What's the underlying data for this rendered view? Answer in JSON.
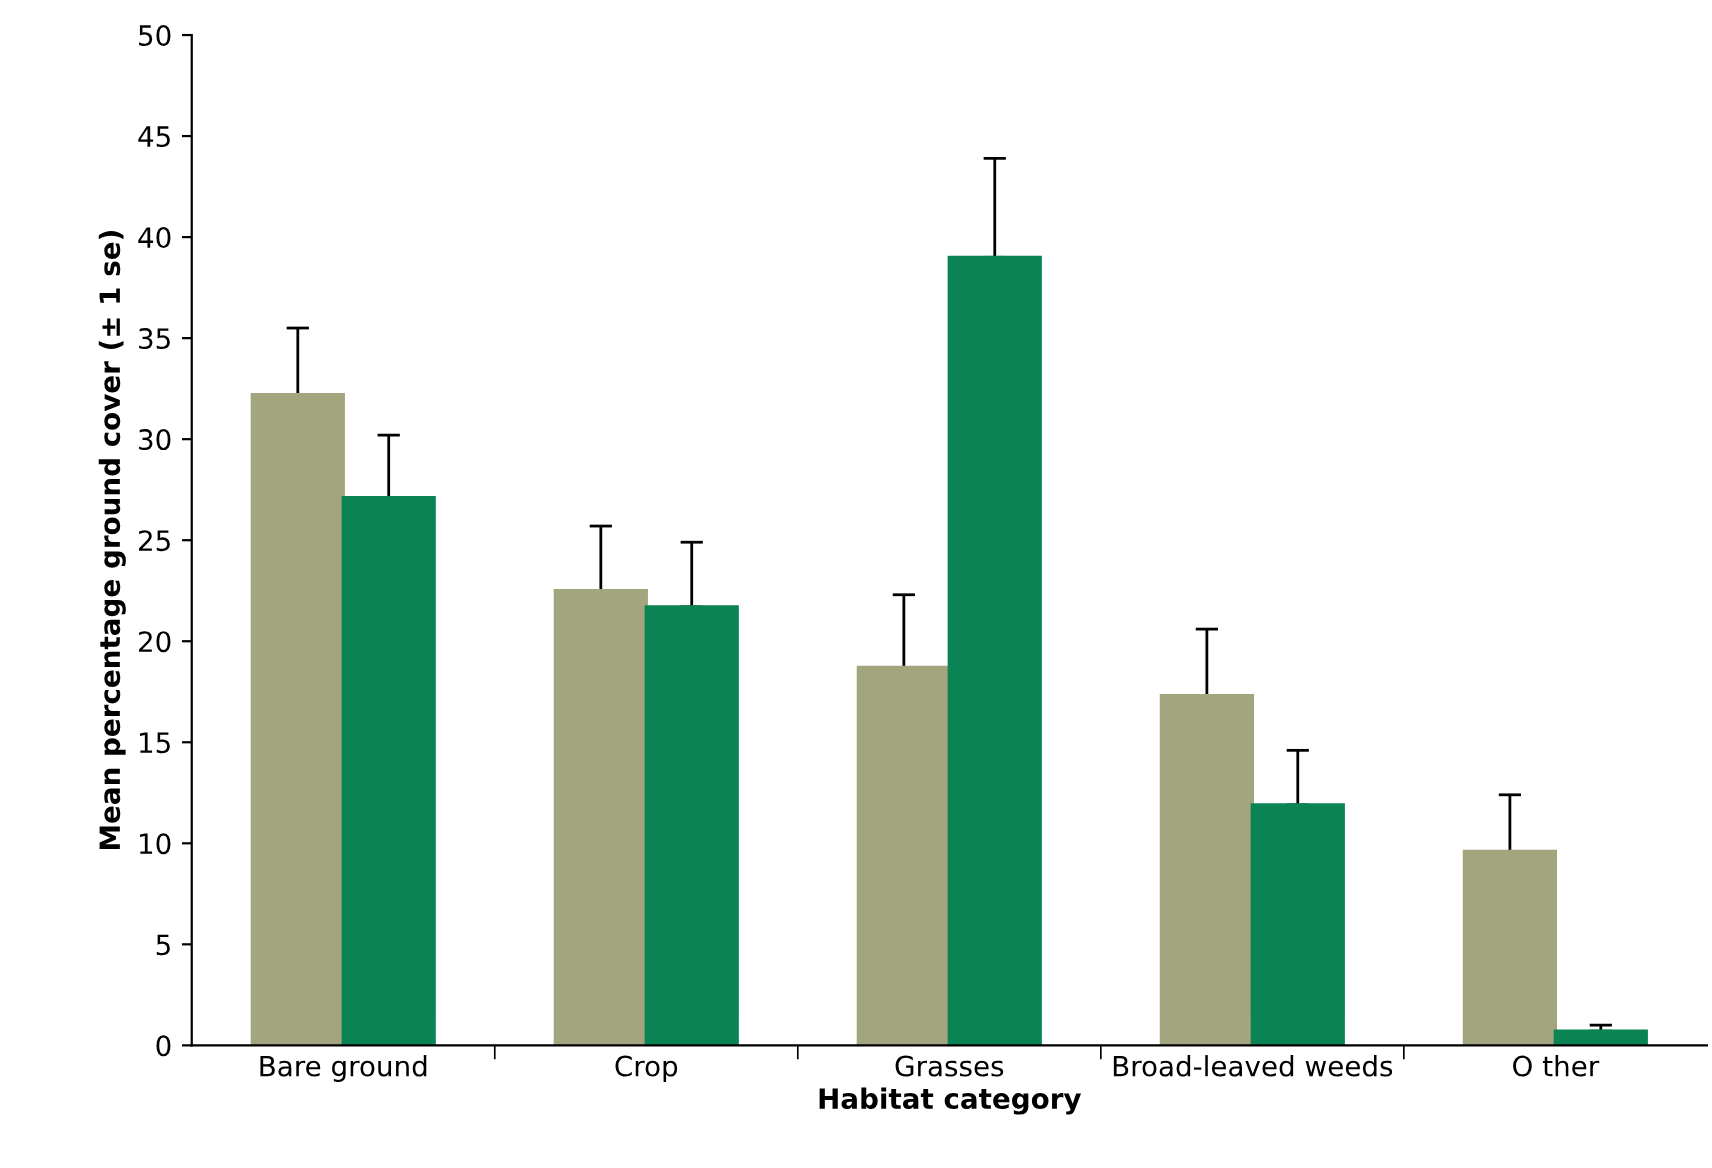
{
  "chart_data": {
    "type": "bar",
    "xlabel": "Habitat category",
    "ylabel": "Mean percentage ground cover (± 1 se)",
    "categories": [
      "Bare ground",
      "Crop",
      "Grasses",
      "Broad-leaved weeds",
      "O ther"
    ],
    "series": [
      {
        "color": "#a3a57f",
        "values": [
          32.2,
          22.5,
          18.7,
          17.3,
          9.6
        ],
        "errors": [
          3.3,
          3.2,
          3.6,
          3.3,
          2.8
        ]
      },
      {
        "color": "#0b8455",
        "values": [
          27.1,
          21.7,
          39.0,
          11.9,
          0.7
        ],
        "errors": [
          3.1,
          3.2,
          4.9,
          2.7,
          0.3
        ]
      }
    ],
    "ylim": [
      0,
      50
    ],
    "yticks": [
      0,
      5,
      10,
      15,
      20,
      25,
      30,
      35,
      40,
      45,
      50
    ],
    "grid": false,
    "legend": false
  }
}
